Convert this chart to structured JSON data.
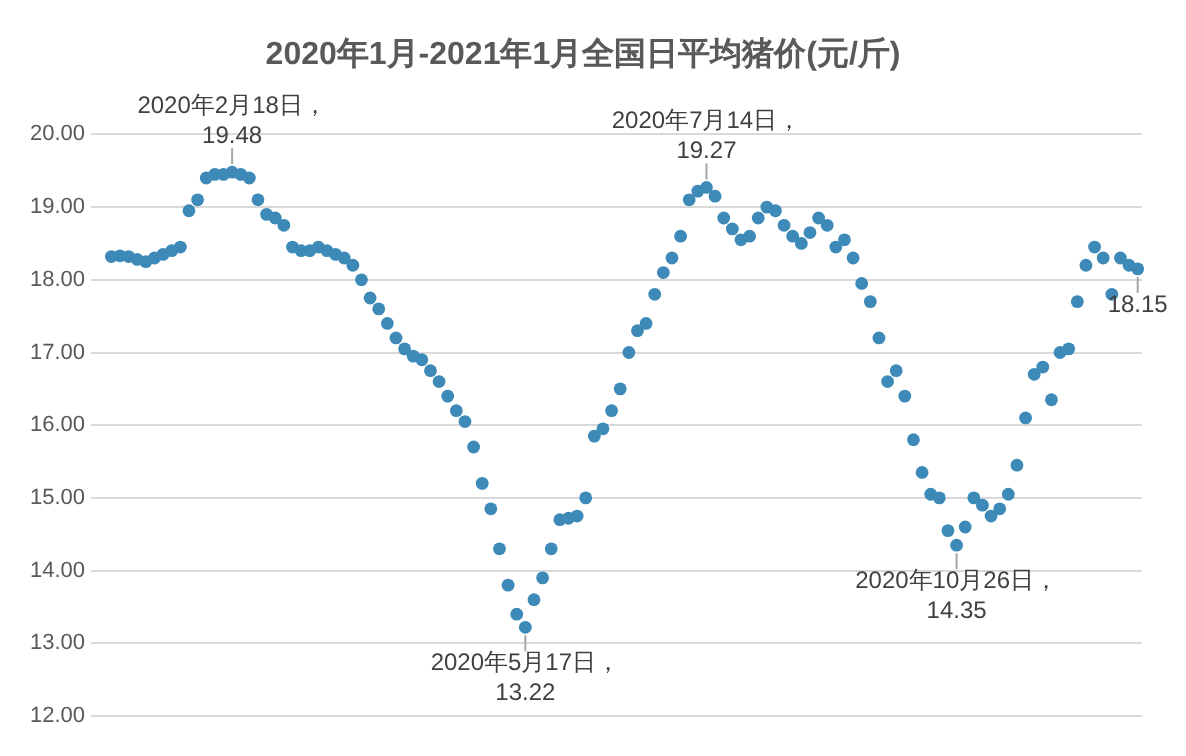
{
  "chart_data": {
    "type": "scatter",
    "title": "2020年1月-2021年1月全国日平均猪价(元/斤)",
    "categories": [
      null,
      null,
      null,
      null,
      null,
      null,
      null,
      null,
      null,
      null,
      null,
      null,
      null,
      null,
      null,
      null,
      null,
      null,
      null,
      null,
      null,
      null,
      null,
      null,
      null,
      null,
      null,
      null,
      null,
      null,
      null,
      null,
      null,
      null,
      null,
      null,
      null,
      null,
      null,
      null,
      null,
      null,
      null,
      null,
      null,
      null,
      null,
      null,
      null,
      null,
      null,
      null,
      null,
      null,
      null,
      null,
      null,
      null,
      null,
      null,
      null,
      null,
      null,
      null,
      null,
      null,
      null,
      null,
      null,
      null,
      null,
      null,
      null,
      null,
      null,
      null,
      null,
      null,
      null,
      null,
      null,
      null,
      null,
      null,
      null,
      null,
      null,
      null,
      null,
      null,
      null,
      null,
      null,
      null,
      null,
      null,
      null,
      null,
      null,
      null,
      null,
      null,
      null,
      null,
      null,
      null,
      null,
      null,
      null,
      null,
      null,
      null,
      null,
      null,
      null,
      null,
      null,
      null,
      null,
      null
    ],
    "series": [
      {
        "color": "#3d8ab8",
        "values": [
          18.32,
          18.33,
          18.32,
          18.28,
          18.25,
          18.3,
          18.35,
          18.4,
          18.45,
          18.95,
          19.1,
          19.4,
          19.45,
          19.45,
          19.48,
          19.45,
          19.4,
          19.1,
          18.9,
          18.85,
          18.75,
          18.45,
          18.4,
          18.4,
          18.45,
          18.4,
          18.35,
          18.3,
          18.2,
          18.0,
          17.75,
          17.6,
          17.4,
          17.2,
          17.05,
          16.95,
          16.9,
          16.75,
          16.6,
          16.4,
          16.2,
          16.05,
          15.7,
          15.2,
          14.85,
          14.3,
          13.8,
          13.4,
          13.22,
          13.6,
          13.9,
          14.3,
          14.7,
          14.72,
          14.75,
          15.0,
          15.85,
          15.95,
          16.2,
          16.5,
          17.0,
          17.3,
          17.4,
          17.8,
          18.1,
          18.3,
          18.6,
          19.1,
          19.22,
          19.27,
          19.15,
          18.85,
          18.7,
          18.55,
          18.6,
          18.85,
          19.0,
          18.95,
          18.75,
          18.6,
          18.5,
          18.65,
          18.85,
          18.75,
          18.45,
          18.55,
          18.3,
          17.95,
          17.7,
          17.2,
          16.6,
          16.75,
          16.4,
          15.8,
          15.35,
          15.05,
          15.0,
          14.55,
          14.35,
          14.6,
          15.0,
          14.9,
          14.75,
          14.85,
          15.05,
          15.45,
          16.1,
          16.7,
          16.8,
          16.35,
          17.0,
          17.05,
          17.7,
          18.2,
          18.45,
          18.3,
          17.8,
          18.3,
          18.2,
          18.15
        ]
      }
    ],
    "ylim": [
      12,
      20
    ],
    "yticks": [
      {
        "value": 12,
        "label": "12.00"
      },
      {
        "value": 13,
        "label": "13.00"
      },
      {
        "value": 14,
        "label": "14.00"
      },
      {
        "value": 15,
        "label": "15.00"
      },
      {
        "value": 16,
        "label": "16.00"
      },
      {
        "value": 17,
        "label": "17.00"
      },
      {
        "value": 18,
        "label": "18.00"
      },
      {
        "value": 19,
        "label": "19.00"
      },
      {
        "value": 20,
        "label": "20.00"
      }
    ],
    "grid": "y",
    "marker": "circle",
    "legend": false,
    "annotations": [
      {
        "text": "2020年2月18日，\n19.48",
        "y": 19.48
      },
      {
        "text": "2020年5月17日，\n13.22",
        "y": 13.22
      },
      {
        "text": "2020年7月14日，\n19.27",
        "y": 19.27
      },
      {
        "text": "2020年10月26日，\n14.35",
        "y": 14.35
      },
      {
        "text": "18.15",
        "y": 18.15
      }
    ]
  }
}
